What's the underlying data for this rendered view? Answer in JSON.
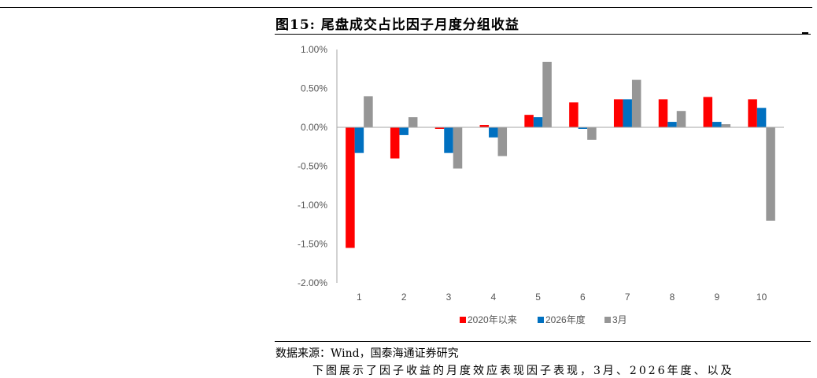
{
  "figure": {
    "title": "图15:  尾盘成交占比因子月度分组收益",
    "source": "数据来源：Wind，国泰海通证券研究",
    "body_fragment": "下图展示了因子收益的月度效应表现因子表现，3月、2026年度、以及"
  },
  "chart_data": {
    "type": "bar",
    "categories": [
      "1",
      "2",
      "3",
      "4",
      "5",
      "6",
      "7",
      "8",
      "9",
      "10"
    ],
    "series": [
      {
        "name": "2020年以来",
        "color": "#ff0000",
        "values": [
          -1.55,
          -0.4,
          -0.02,
          0.03,
          0.16,
          0.32,
          0.36,
          0.36,
          0.39,
          0.36
        ]
      },
      {
        "name": "2026年度",
        "color": "#0070c0",
        "values": [
          -0.33,
          -0.1,
          -0.33,
          -0.13,
          0.13,
          -0.02,
          0.36,
          0.07,
          0.07,
          0.25
        ]
      },
      {
        "name": "3月",
        "color": "#969696",
        "values": [
          0.4,
          0.13,
          -0.53,
          -0.37,
          0.84,
          -0.16,
          0.61,
          0.21,
          0.04,
          -1.2
        ]
      }
    ],
    "ylim": [
      -2.0,
      1.0
    ],
    "yticks": [
      "1.00%",
      "0.50%",
      "0.00%",
      "-0.50%",
      "-1.00%",
      "-1.50%",
      "-2.00%"
    ],
    "ytick_values": [
      1.0,
      0.5,
      0.0,
      -0.5,
      -1.0,
      -1.5,
      -2.0
    ],
    "grid": false,
    "legend_position": "bottom"
  }
}
